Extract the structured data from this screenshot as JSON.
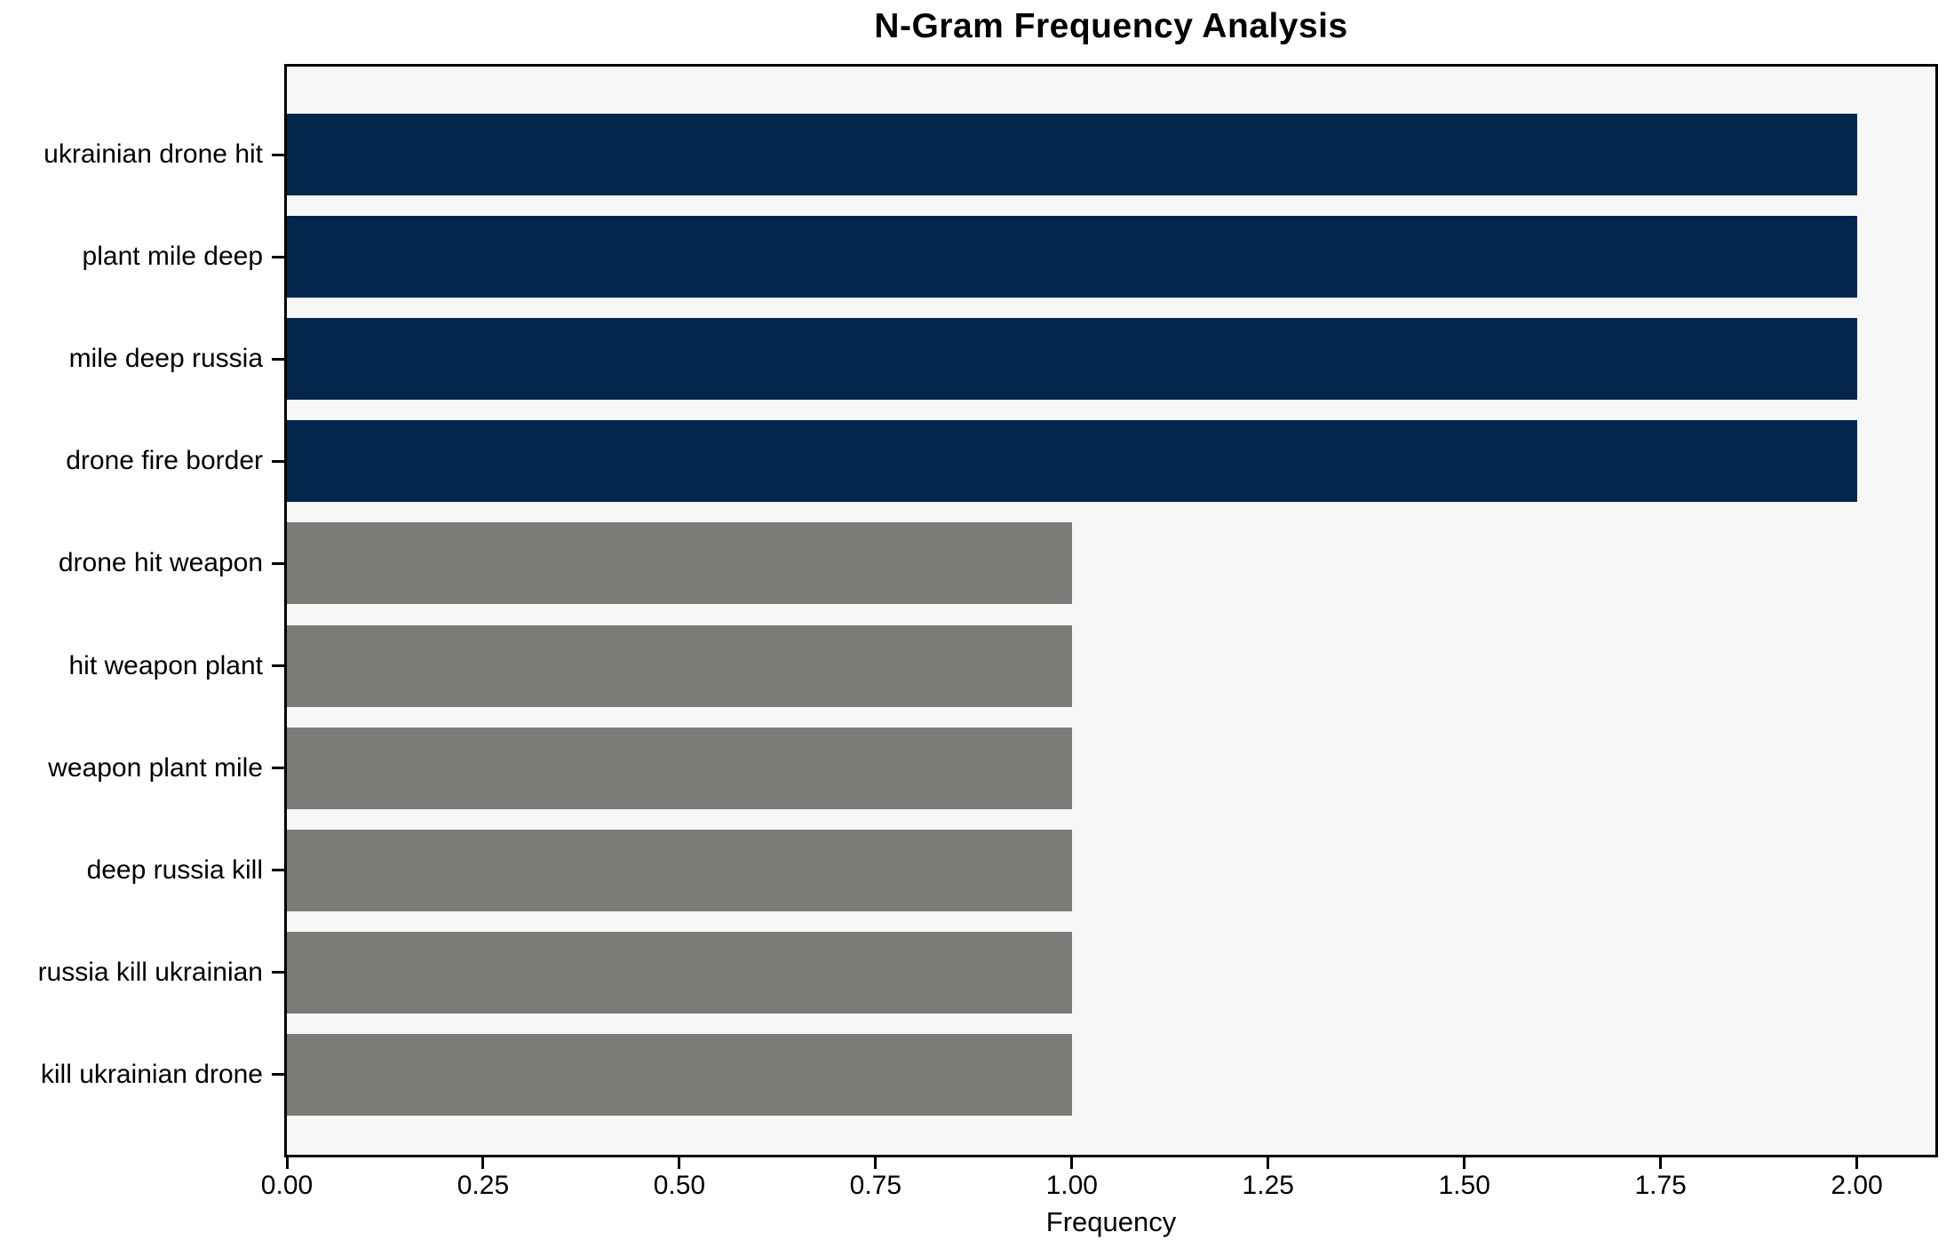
{
  "chart_data": {
    "type": "bar",
    "orientation": "horizontal",
    "title": "N-Gram Frequency Analysis",
    "xlabel": "Frequency",
    "ylabel": "",
    "categories": [
      "ukrainian drone hit",
      "plant mile deep",
      "mile deep russia",
      "drone fire border",
      "drone hit weapon",
      "hit weapon plant",
      "weapon plant mile",
      "deep russia kill",
      "russia kill ukrainian",
      "kill ukrainian drone"
    ],
    "values": [
      2,
      2,
      2,
      2,
      1,
      1,
      1,
      1,
      1,
      1
    ],
    "bar_colors": [
      "#04264d",
      "#04264d",
      "#04264d",
      "#04264d",
      "#7b7b77",
      "#7b7b77",
      "#7b7b77",
      "#7b7b77",
      "#7b7b77",
      "#7b7b77"
    ],
    "highlight_color": "#04264d",
    "base_color": "#7b7b77",
    "xlim": [
      0,
      2.1
    ],
    "xticks": [
      {
        "value": 0.0,
        "label": "0.00"
      },
      {
        "value": 0.25,
        "label": "0.25"
      },
      {
        "value": 0.5,
        "label": "0.50"
      },
      {
        "value": 0.75,
        "label": "0.75"
      },
      {
        "value": 1.0,
        "label": "1.00"
      },
      {
        "value": 1.25,
        "label": "1.25"
      },
      {
        "value": 1.5,
        "label": "1.50"
      },
      {
        "value": 1.75,
        "label": "1.75"
      },
      {
        "value": 2.0,
        "label": "2.00"
      }
    ],
    "grid": false,
    "legend": false,
    "plot_background": "#f7f7f8",
    "figure_background": "#ffffff",
    "spine_color": "#000000",
    "text_color": "#000000"
  }
}
